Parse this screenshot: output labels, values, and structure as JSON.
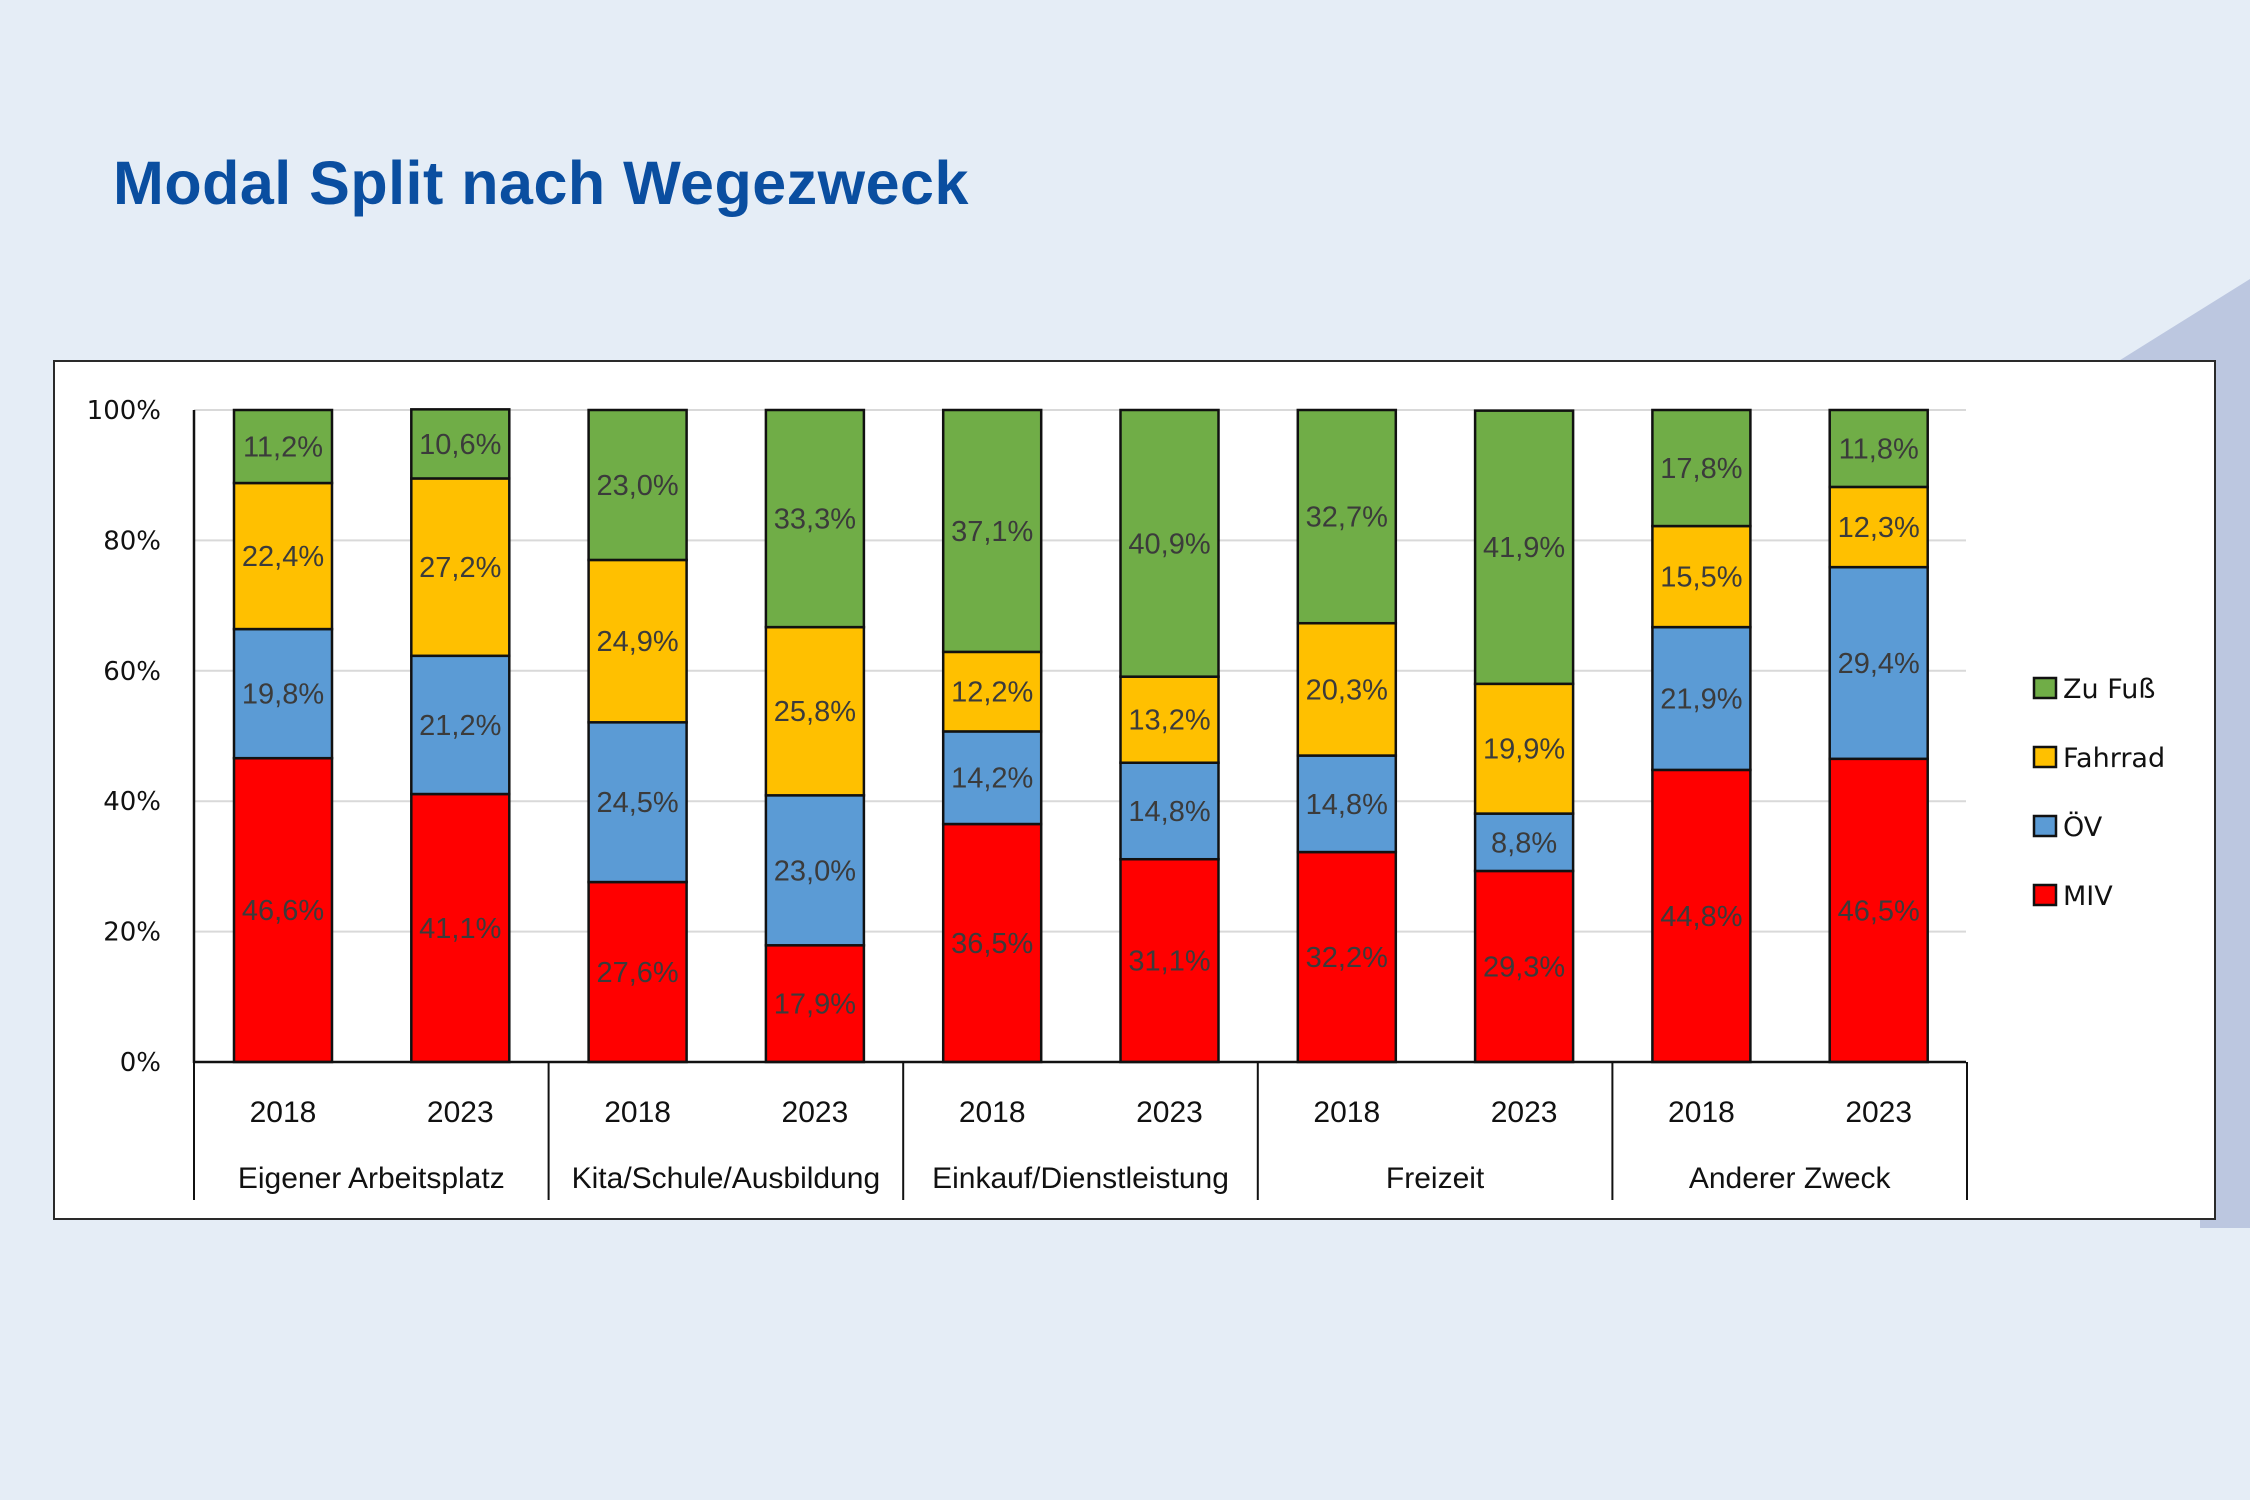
{
  "page": {
    "title": "Modal Split nach Wegezweck"
  },
  "theme": {
    "background": "#e5edf6",
    "title_color": "#0a4ea0",
    "decoration_color": "#bcc7e0"
  },
  "chart_data": {
    "type": "bar",
    "stacked": true,
    "title": "Modal Split nach Wegezweck",
    "xlabel": "",
    "ylabel": "",
    "ylim": [
      0,
      100
    ],
    "yticks": [
      "0%",
      "20%",
      "40%",
      "60%",
      "80%",
      "100%"
    ],
    "grid": true,
    "legend_position": "right",
    "groups": [
      "Eigener Arbeitsplatz",
      "Kita/Schule/Ausbildung",
      "Einkauf/Dienstleistung",
      "Freizeit",
      "Anderer Zweck"
    ],
    "years": [
      "2018",
      "2023"
    ],
    "categories": [
      "Eigener Arbeitsplatz 2018",
      "Eigener Arbeitsplatz 2023",
      "Kita/Schule/Ausbildung 2018",
      "Kita/Schule/Ausbildung 2023",
      "Einkauf/Dienstleistung 2018",
      "Einkauf/Dienstleistung 2023",
      "Freizeit 2018",
      "Freizeit 2023",
      "Anderer Zweck 2018",
      "Anderer Zweck 2023"
    ],
    "series": [
      {
        "name": "MIV",
        "color": "#ff0000",
        "values": [
          46.6,
          41.1,
          27.6,
          17.9,
          36.5,
          31.1,
          32.2,
          29.3,
          44.8,
          46.5
        ],
        "labels": [
          "46,6%",
          "41,1%",
          "27,6%",
          "17,9%",
          "36,5%",
          "31,1%",
          "32,2%",
          "29,3%",
          "44,8%",
          "46,5%"
        ]
      },
      {
        "name": "ÖV",
        "color": "#5b9bd5",
        "values": [
          19.8,
          21.2,
          24.5,
          23.0,
          14.2,
          14.8,
          14.8,
          8.8,
          21.9,
          29.4
        ],
        "labels": [
          "19,8%",
          "21,2%",
          "24,5%",
          "23,0%",
          "14,2%",
          "14,8%",
          "14,8%",
          "8,8%",
          "21,9%",
          "29,4%"
        ]
      },
      {
        "name": "Fahrrad",
        "color": "#ffc000",
        "values": [
          22.4,
          27.2,
          24.9,
          25.8,
          12.2,
          13.2,
          20.3,
          19.9,
          15.5,
          12.3
        ],
        "labels": [
          "22,4%",
          "27,2%",
          "24,9%",
          "25,8%",
          "12,2%",
          "13,2%",
          "20,3%",
          "19,9%",
          "15,5%",
          "12,3%"
        ]
      },
      {
        "name": "Zu Fuß",
        "color": "#70ad47",
        "values": [
          11.2,
          10.6,
          23.0,
          33.3,
          37.1,
          40.9,
          32.7,
          41.9,
          17.8,
          11.8
        ],
        "labels": [
          "11,2%",
          "10,6%",
          "23,0%",
          "33,3%",
          "37,1%",
          "40,9%",
          "32,7%",
          "41,9%",
          "17,8%",
          "11,8%"
        ]
      }
    ],
    "legend": [
      "Zu Fuß",
      "Fahrrad",
      "ÖV",
      "MIV"
    ]
  }
}
